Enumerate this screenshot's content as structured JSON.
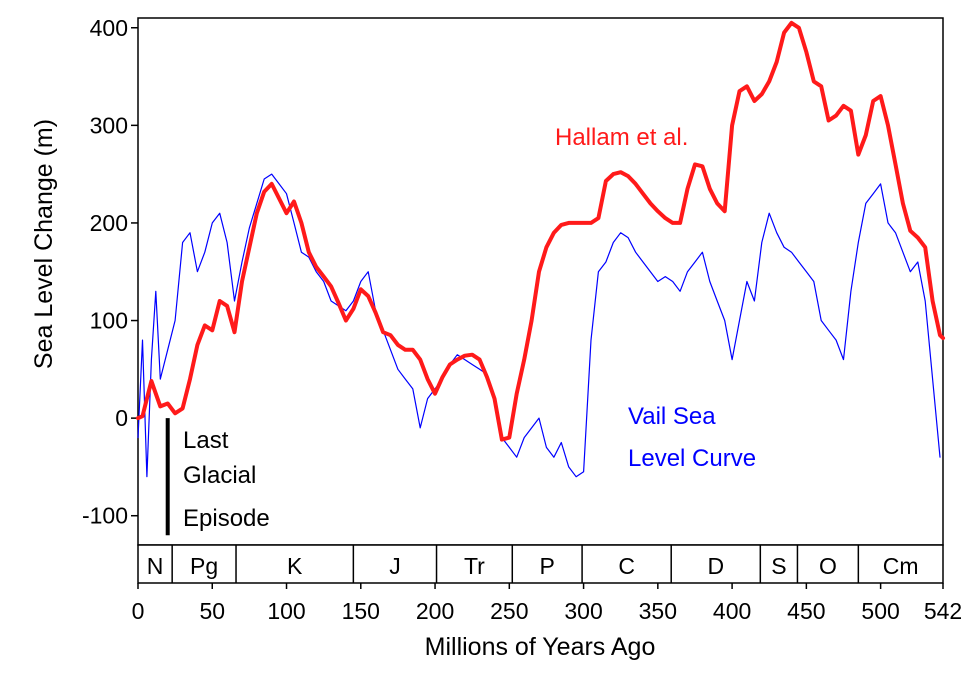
{
  "chart_data": {
    "type": "line",
    "xlabel": "Millions of Years Ago",
    "ylabel": "Sea Level Change (m)",
    "xlim": [
      0,
      542
    ],
    "ylim": [
      -130,
      410
    ],
    "x_ticks": [
      0,
      50,
      100,
      150,
      200,
      250,
      300,
      350,
      400,
      450,
      500,
      542
    ],
    "y_ticks": [
      -100,
      0,
      100,
      200,
      300,
      400
    ],
    "grid": false,
    "periods": [
      {
        "label": "N",
        "start": 0,
        "end": 23
      },
      {
        "label": "Pg",
        "start": 23,
        "end": 66
      },
      {
        "label": "K",
        "start": 66,
        "end": 145
      },
      {
        "label": "J",
        "start": 145,
        "end": 201
      },
      {
        "label": "Tr",
        "start": 201,
        "end": 252
      },
      {
        "label": "P",
        "start": 252,
        "end": 299
      },
      {
        "label": "C",
        "start": 299,
        "end": 359
      },
      {
        "label": "D",
        "start": 359,
        "end": 419
      },
      {
        "label": "S",
        "start": 419,
        "end": 444
      },
      {
        "label": "O",
        "start": 444,
        "end": 485
      },
      {
        "label": "Cm",
        "start": 485,
        "end": 542
      }
    ],
    "series": [
      {
        "name": "Hallam et al.",
        "color": "#ff1a1a",
        "x": [
          0,
          3,
          6,
          9,
          12,
          15,
          20,
          25,
          30,
          35,
          40,
          45,
          50,
          55,
          60,
          65,
          70,
          75,
          80,
          85,
          90,
          95,
          100,
          105,
          110,
          115,
          120,
          125,
          130,
          135,
          140,
          145,
          150,
          155,
          160,
          165,
          170,
          175,
          180,
          185,
          190,
          195,
          200,
          205,
          210,
          215,
          220,
          225,
          230,
          235,
          240,
          245,
          250,
          255,
          260,
          265,
          270,
          275,
          280,
          285,
          290,
          295,
          300,
          305,
          310,
          315,
          320,
          325,
          330,
          335,
          340,
          345,
          350,
          355,
          360,
          365,
          370,
          375,
          380,
          385,
          390,
          395,
          400,
          405,
          410,
          415,
          420,
          425,
          430,
          435,
          440,
          445,
          450,
          455,
          460,
          465,
          470,
          475,
          480,
          485,
          490,
          495,
          500,
          505,
          510,
          515,
          520,
          525,
          530,
          535,
          540,
          542
        ],
        "y": [
          0,
          2,
          20,
          38,
          25,
          12,
          15,
          5,
          10,
          40,
          75,
          95,
          90,
          120,
          115,
          88,
          140,
          175,
          210,
          232,
          240,
          225,
          210,
          222,
          200,
          170,
          155,
          145,
          135,
          118,
          100,
          112,
          132,
          125,
          108,
          88,
          85,
          75,
          70,
          70,
          60,
          40,
          25,
          42,
          55,
          60,
          64,
          65,
          60,
          42,
          20,
          -22,
          -20,
          25,
          60,
          100,
          150,
          175,
          190,
          198,
          200,
          200,
          200,
          200,
          205,
          243,
          250,
          252,
          248,
          240,
          230,
          220,
          212,
          205,
          200,
          200,
          235,
          260,
          258,
          235,
          220,
          212,
          300,
          335,
          340,
          325,
          332,
          345,
          365,
          395,
          405,
          400,
          375,
          345,
          340,
          305,
          310,
          320,
          315,
          270,
          290,
          325,
          330,
          300,
          260,
          220,
          192,
          185,
          175,
          120,
          85,
          82
        ]
      },
      {
        "name": "Vail Sea Level Curve",
        "color": "#0000ff",
        "x": [
          0,
          3,
          6,
          9,
          12,
          15,
          20,
          25,
          30,
          35,
          40,
          45,
          50,
          55,
          60,
          65,
          70,
          75,
          80,
          85,
          90,
          95,
          100,
          105,
          110,
          115,
          120,
          125,
          130,
          135,
          140,
          145,
          150,
          155,
          160,
          165,
          170,
          175,
          180,
          185,
          190,
          195,
          200,
          205,
          210,
          215,
          220,
          225,
          230,
          235,
          240,
          245,
          250,
          255,
          260,
          265,
          270,
          275,
          280,
          285,
          290,
          295,
          300,
          305,
          310,
          315,
          320,
          325,
          330,
          335,
          340,
          345,
          350,
          355,
          360,
          365,
          370,
          375,
          380,
          385,
          390,
          395,
          400,
          405,
          410,
          415,
          420,
          425,
          430,
          435,
          440,
          445,
          450,
          455,
          460,
          465,
          470,
          475,
          480,
          485,
          490,
          495,
          500,
          505,
          510,
          515,
          520,
          525,
          530,
          535,
          540
        ],
        "y": [
          -20,
          80,
          -60,
          60,
          130,
          40,
          70,
          100,
          180,
          190,
          150,
          170,
          200,
          210,
          180,
          120,
          160,
          195,
          220,
          245,
          250,
          240,
          230,
          200,
          170,
          165,
          150,
          140,
          120,
          115,
          110,
          120,
          140,
          150,
          110,
          90,
          70,
          50,
          40,
          30,
          -10,
          20,
          30,
          40,
          55,
          65,
          60,
          55,
          50,
          45,
          20,
          -20,
          -30,
          -40,
          -20,
          -10,
          0,
          -30,
          -40,
          -25,
          -50,
          -60,
          -55,
          80,
          150,
          160,
          180,
          190,
          185,
          170,
          160,
          150,
          140,
          145,
          140,
          130,
          150,
          160,
          170,
          140,
          120,
          100,
          60,
          100,
          140,
          120,
          180,
          210,
          190,
          175,
          170,
          160,
          150,
          140,
          100,
          90,
          80,
          60,
          130,
          180,
          220,
          230,
          240,
          200,
          190,
          170,
          150,
          160,
          120,
          40,
          -40
        ]
      }
    ],
    "annotations": [
      {
        "text": "Hallam et al.",
        "color": "#ff1a1a"
      },
      {
        "text": "Vail Sea",
        "color": "#0000ff"
      },
      {
        "text": "Level Curve",
        "color": "#0000ff"
      },
      {
        "text": "Last",
        "color": "#000000"
      },
      {
        "text": "Glacial",
        "color": "#000000"
      },
      {
        "text": "Episode",
        "color": "#000000"
      }
    ],
    "last_glacial_bar": {
      "x": 20,
      "y_top": 0,
      "y_bottom": -120
    }
  }
}
